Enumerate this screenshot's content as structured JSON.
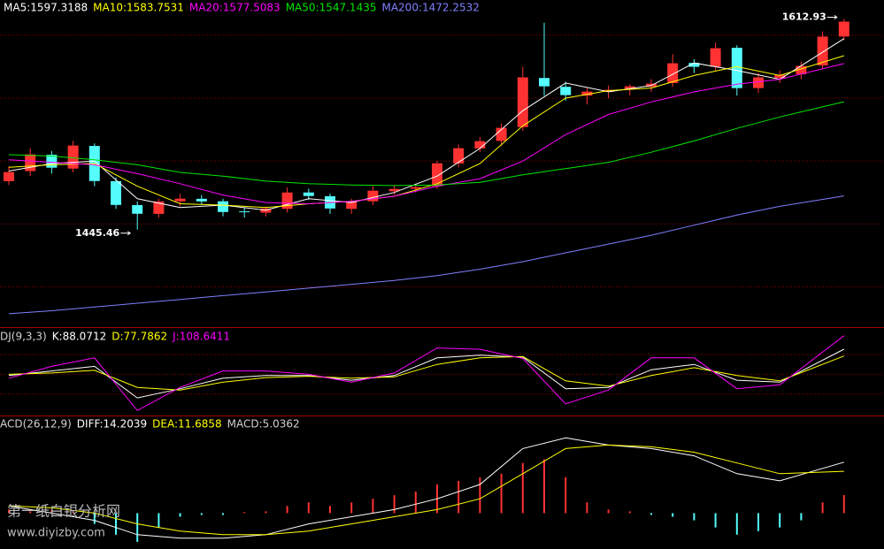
{
  "chart_data": [
    {
      "type": "candlestick",
      "open": [
        1484,
        1492,
        1505,
        1494,
        1512,
        1484,
        1465,
        1458,
        1468,
        1470,
        1468,
        1460,
        1459,
        1462,
        1475,
        1472,
        1462,
        1468,
        1476,
        1478,
        1480,
        1498,
        1510,
        1516,
        1527,
        1566,
        1559,
        1552,
        1555,
        1557,
        1559,
        1562,
        1578,
        1575,
        1590,
        1558,
        1566,
        1569,
        1576,
        1599
      ],
      "high": [
        1496,
        1510,
        1508,
        1516,
        1514,
        1487,
        1468,
        1470,
        1474,
        1473,
        1470,
        1463,
        1464,
        1479,
        1478,
        1474,
        1470,
        1480,
        1481,
        1482,
        1500,
        1513,
        1519,
        1530,
        1575,
        1610,
        1563,
        1558,
        1560,
        1561,
        1565,
        1585,
        1581,
        1594,
        1592,
        1570,
        1572,
        1579,
        1603,
        1612.93
      ],
      "low": [
        1481,
        1488,
        1490,
        1491,
        1480,
        1462,
        1445.46,
        1455,
        1464,
        1465,
        1456,
        1455,
        1456,
        1459,
        1469,
        1458,
        1458,
        1465,
        1473,
        1475,
        1478,
        1495,
        1507,
        1512,
        1524,
        1552,
        1548,
        1545,
        1550,
        1552,
        1555,
        1559,
        1570,
        1572,
        1552,
        1554,
        1562,
        1565,
        1573,
        1596
      ],
      "close": [
        1491.2,
        1505.3,
        1494.7,
        1512.3,
        1484.1,
        1465.1,
        1458.1,
        1467.9,
        1470.1,
        1467.9,
        1459.5,
        1459.5,
        1462.3,
        1475,
        1472.2,
        1462.3,
        1467.9,
        1476.4,
        1477.8,
        1479.2,
        1498.2,
        1510.2,
        1515.8,
        1526.4,
        1566.5,
        1559.4,
        1552.4,
        1555.2,
        1556.6,
        1559.4,
        1561.5,
        1577.7,
        1574.9,
        1589.7,
        1558,
        1566.5,
        1568.6,
        1575.6,
        1598.9,
        1610.8
      ],
      "up_color": "#ff3232",
      "down_color": "#54fcfc",
      "ylim": [
        1368,
        1628
      ],
      "yticks": [
        1400,
        1450,
        1500,
        1550,
        1600
      ],
      "grid": true,
      "series": [
        {
          "name": "MA5:1597.3188",
          "color": "#ffffff",
          "x": [
            0,
            2,
            4,
            6,
            8,
            10,
            12,
            14,
            16,
            18,
            20,
            22,
            24,
            26,
            28,
            30,
            32,
            34,
            36,
            39
          ],
          "values": [
            1492,
            1498,
            1500,
            1470,
            1463,
            1465,
            1461,
            1470,
            1467,
            1475,
            1488,
            1510,
            1540,
            1562,
            1555,
            1560,
            1578,
            1572,
            1565,
            1597.3188
          ]
        },
        {
          "name": "MA10:1583.7531",
          "color": "#ffff00",
          "x": [
            0,
            2,
            4,
            6,
            8,
            10,
            12,
            14,
            16,
            18,
            20,
            22,
            24,
            26,
            28,
            30,
            32,
            34,
            36,
            39
          ],
          "values": [
            1495,
            1497,
            1498,
            1480,
            1466,
            1465,
            1463,
            1466,
            1468,
            1472,
            1482,
            1498,
            1528,
            1550,
            1556,
            1558,
            1568,
            1575,
            1568,
            1583.7531
          ]
        },
        {
          "name": "MA20:1577.5083",
          "color": "#ff00ff",
          "x": [
            0,
            2,
            4,
            6,
            8,
            10,
            12,
            14,
            16,
            18,
            20,
            22,
            24,
            26,
            28,
            30,
            32,
            34,
            36,
            39
          ],
          "values": [
            1501,
            1499,
            1497,
            1490,
            1482,
            1473,
            1467,
            1466,
            1468,
            1472,
            1480,
            1486,
            1500,
            1521,
            1537,
            1547,
            1555,
            1561,
            1565,
            1577.5083
          ]
        },
        {
          "name": "MA50:1547.1435",
          "color": "#00e600",
          "x": [
            0,
            2,
            4,
            6,
            8,
            10,
            12,
            14,
            16,
            18,
            20,
            22,
            24,
            26,
            28,
            30,
            32,
            34,
            36,
            39
          ],
          "values": [
            1505,
            1504,
            1501,
            1497,
            1491,
            1488,
            1484,
            1482,
            1481,
            1480.5,
            1481,
            1483,
            1489,
            1494,
            1499,
            1507,
            1516,
            1526,
            1535,
            1547.1435
          ]
        },
        {
          "name": "MA200:1472.2532",
          "color": "#8080ff",
          "x": [
            0,
            2,
            4,
            6,
            8,
            10,
            12,
            14,
            16,
            18,
            20,
            22,
            24,
            26,
            28,
            30,
            32,
            34,
            36,
            39
          ],
          "values": [
            1378.6,
            1381,
            1384,
            1387,
            1390,
            1393,
            1396,
            1399,
            1402,
            1405,
            1409,
            1414,
            1420,
            1427,
            1434,
            1441,
            1449,
            1457,
            1464,
            1472.2532
          ]
        }
      ]
    },
    {
      "type": "line",
      "title": "DJ(9,3,3)",
      "ylim": [
        -10,
        115
      ],
      "yticks": [
        20,
        50,
        80
      ],
      "grid": true,
      "series": [
        {
          "name": "K:88.0712",
          "color": "#ffffff",
          "x": [
            0,
            2,
            4,
            6,
            8,
            10,
            12,
            14,
            16,
            18,
            20,
            22,
            24,
            26,
            28,
            30,
            32,
            34,
            36,
            39
          ],
          "values": [
            48,
            55,
            62,
            14,
            28,
            44,
            48,
            48,
            41,
            48,
            75,
            79,
            76,
            28,
            30,
            57,
            65,
            41,
            38,
            88.0712
          ]
        },
        {
          "name": "D:77.7862",
          "color": "#ffff00",
          "x": [
            0,
            2,
            4,
            6,
            8,
            10,
            12,
            14,
            16,
            18,
            20,
            22,
            24,
            26,
            28,
            30,
            32,
            34,
            36,
            39
          ],
          "values": [
            50,
            52,
            56,
            30,
            26,
            38,
            45,
            47,
            44,
            46,
            65,
            75,
            77,
            40,
            32,
            48,
            60,
            48,
            40,
            77.7862
          ]
        },
        {
          "name": "J:108.6411",
          "color": "#ff00ff",
          "x": [
            0,
            2,
            4,
            6,
            8,
            10,
            12,
            14,
            16,
            18,
            20,
            22,
            24,
            26,
            28,
            30,
            32,
            34,
            36,
            39
          ],
          "values": [
            44,
            62,
            75,
            -5,
            30,
            55,
            55,
            50,
            38,
            52,
            90,
            88,
            74,
            5,
            26,
            75,
            75,
            28,
            34,
            108.6411
          ]
        }
      ]
    },
    {
      "type": "macd",
      "title": "ACD(26,12,9)",
      "ylim": [
        -10,
        26
      ],
      "series": [
        {
          "name": "DIFF:14.2039",
          "color": "#ffffff",
          "x": [
            0,
            2,
            4,
            6,
            8,
            10,
            12,
            14,
            16,
            18,
            20,
            22,
            24,
            26,
            28,
            30,
            32,
            34,
            36,
            39
          ],
          "values": [
            2,
            0,
            -2,
            -6,
            -7,
            -7,
            -6,
            -3,
            -1,
            1,
            4,
            8,
            18,
            21,
            19,
            18,
            16,
            11,
            9,
            14.2039
          ]
        },
        {
          "name": "DEA:11.6858",
          "color": "#ffff00",
          "x": [
            0,
            2,
            4,
            6,
            8,
            10,
            12,
            14,
            16,
            18,
            20,
            22,
            24,
            26,
            28,
            30,
            32,
            34,
            36,
            39
          ],
          "values": [
            2,
            1.5,
            0,
            -3,
            -5,
            -6,
            -6,
            -5,
            -3,
            -1,
            1,
            4,
            11,
            18,
            19,
            18.5,
            17,
            14,
            11,
            11.6858
          ]
        }
      ],
      "bars": {
        "name": "MACD:5.0362",
        "color": "#d0d0d0",
        "up_color": "#ff3232",
        "down_color": "#54fcfc",
        "values": [
          1,
          0.5,
          1,
          0.5,
          -3,
          -6,
          -8,
          -4,
          -1,
          -0.5,
          -0.5,
          0.3,
          0.5,
          2,
          3,
          2,
          3,
          4,
          5,
          6,
          8,
          9,
          10,
          11,
          14,
          15,
          10,
          3,
          1,
          0.5,
          -0.5,
          -1,
          -2,
          -4,
          -6,
          -5,
          -4,
          -2,
          3,
          5.0362
        ]
      }
    }
  ],
  "watermark": [
    "第一纸白银分析网",
    "www.diyizby.com"
  ]
}
